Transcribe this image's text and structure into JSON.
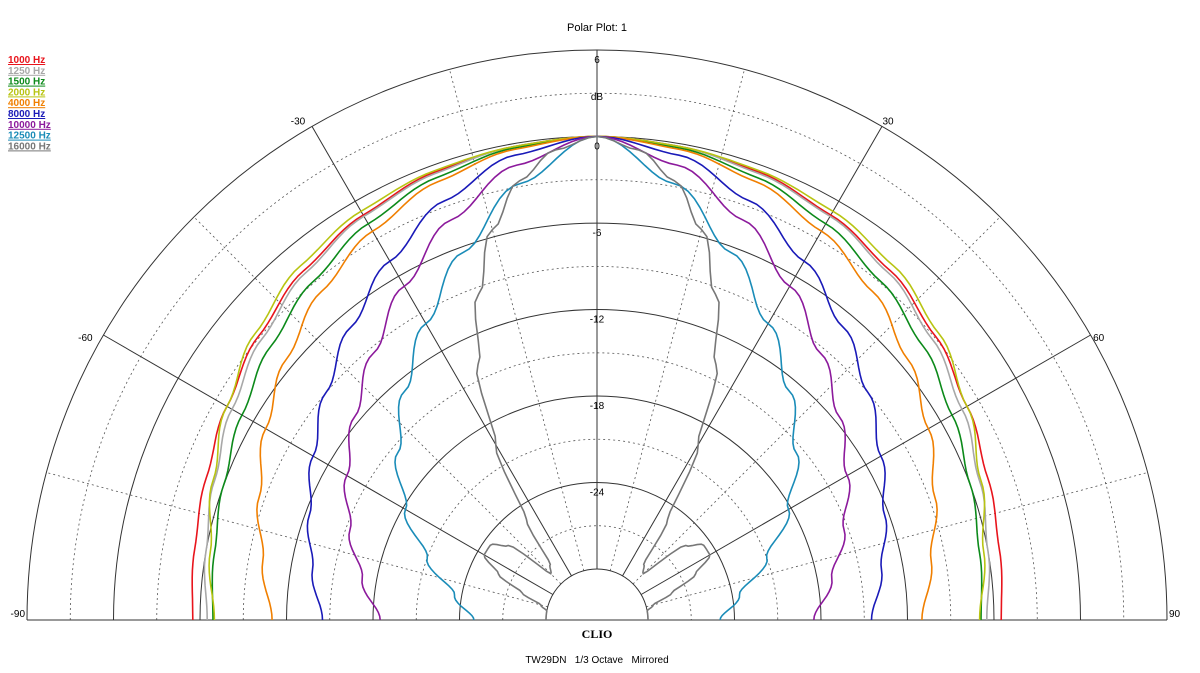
{
  "chart_data": {
    "type": "polar",
    "title": "Polar Plot: 1",
    "radial_unit": "dB",
    "radial_ticks": [
      "6",
      "0",
      "-6",
      "-12",
      "-18",
      "-24"
    ],
    "rlim": [
      -30,
      6
    ],
    "angle_ticks": [
      "-90",
      "-60",
      "-30",
      "30",
      "60",
      "90"
    ],
    "angle_range_deg": [
      -90,
      90
    ],
    "mirrored": true,
    "footer": "TW29DN   1/3 Octave   Mirrored",
    "logo": "CLIO",
    "legend_placement": "top-left",
    "series": [
      {
        "name": "1000 Hz",
        "color": "#e8141c",
        "angles": [
          0,
          10,
          20,
          30,
          40,
          50,
          60,
          70,
          80,
          90
        ],
        "values": [
          0,
          -0.2,
          -0.5,
          -1.1,
          -1.9,
          -2.9,
          -3.9,
          -4.7,
          -5.2,
          -5.5
        ]
      },
      {
        "name": "1250 Hz",
        "color": "#a8a8a8",
        "angles": [
          0,
          10,
          20,
          30,
          40,
          50,
          60,
          70,
          80,
          90
        ],
        "values": [
          0,
          -0.2,
          -0.6,
          -1.2,
          -2.1,
          -3.2,
          -4.3,
          -5.3,
          -6.0,
          -6.5
        ]
      },
      {
        "name": "1500 Hz",
        "color": "#0c8a1a",
        "angles": [
          0,
          10,
          20,
          30,
          40,
          50,
          60,
          70,
          80,
          90
        ],
        "values": [
          0,
          -0.3,
          -0.9,
          -1.8,
          -2.9,
          -4.0,
          -5.1,
          -6.0,
          -6.6,
          -6.9
        ]
      },
      {
        "name": "2000 Hz",
        "color": "#b8c412",
        "angles": [
          0,
          10,
          20,
          30,
          40,
          50,
          60,
          70,
          80,
          90
        ],
        "values": [
          0,
          -0.2,
          -0.4,
          -0.8,
          -1.5,
          -2.6,
          -3.9,
          -5.2,
          -6.3,
          -7.0
        ]
      },
      {
        "name": "4000 Hz",
        "color": "#f07f00",
        "angles": [
          0,
          10,
          20,
          30,
          40,
          50,
          60,
          70,
          80,
          90
        ],
        "values": [
          0,
          -0.4,
          -1.2,
          -2.4,
          -3.8,
          -5.4,
          -7.0,
          -8.6,
          -10.0,
          -11.0
        ]
      },
      {
        "name": "8000 Hz",
        "color": "#1a1ab8",
        "angles": [
          0,
          10,
          20,
          30,
          40,
          50,
          60,
          70,
          80,
          90
        ],
        "values": [
          0,
          -0.8,
          -2.6,
          -4.8,
          -7.0,
          -9.0,
          -10.8,
          -12.3,
          -13.5,
          -14.5
        ]
      },
      {
        "name": "10000 Hz",
        "color": "#8c1a9c",
        "angles": [
          0,
          10,
          20,
          30,
          40,
          50,
          60,
          70,
          80,
          90
        ],
        "values": [
          0,
          -1.5,
          -4.0,
          -6.8,
          -9.4,
          -11.6,
          -13.5,
          -15.3,
          -17.0,
          -18.5
        ]
      },
      {
        "name": "12500 Hz",
        "color": "#1a8cb8",
        "angles": [
          0,
          10,
          20,
          30,
          40,
          50,
          60,
          70,
          80,
          90
        ],
        "values": [
          0,
          -2.8,
          -6.4,
          -9.8,
          -12.8,
          -15.5,
          -18.2,
          -21.0,
          -23.5,
          -25.0
        ]
      },
      {
        "name": "16000 Hz",
        "color": "#777777",
        "angles": [
          0,
          5,
          10,
          15,
          20,
          25,
          30,
          35,
          40,
          45,
          50,
          55,
          60,
          65,
          70,
          75,
          80,
          85,
          90
        ],
        "values": [
          0,
          -0.8,
          -2.6,
          -5.5,
          -9.5,
          -14.0,
          -19.5,
          -25.0,
          -28.5,
          -29.0,
          -25.5,
          -24.5,
          -24.5,
          -26.0,
          -28.0,
          -29.5,
          -30,
          -30,
          -30
        ]
      }
    ]
  }
}
